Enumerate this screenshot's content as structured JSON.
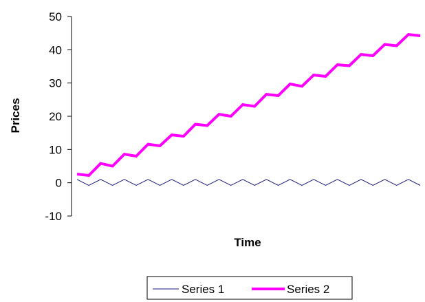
{
  "chart_data": {
    "type": "line",
    "title": "",
    "xlabel": "Time",
    "ylabel": "Prices",
    "ylim": [
      -10,
      50
    ],
    "yticks": [
      -10,
      0,
      10,
      20,
      30,
      40,
      50
    ],
    "grid": false,
    "legend_position": "bottom",
    "x": [
      1,
      2,
      3,
      4,
      5,
      6,
      7,
      8,
      9,
      10,
      11,
      12,
      13,
      14,
      15,
      16,
      17,
      18,
      19,
      20,
      21,
      22,
      23,
      24,
      25,
      26,
      27,
      28,
      29,
      30
    ],
    "series": [
      {
        "name": "Series 1",
        "color": "#1a1a80",
        "values": [
          1,
          -0.8,
          1,
          -0.8,
          1,
          -0.8,
          1,
          -0.8,
          1,
          -0.8,
          1,
          -0.8,
          1,
          -0.8,
          1,
          -0.8,
          1,
          -0.8,
          1,
          -0.8,
          1,
          -0.8,
          1,
          -0.8,
          1,
          -0.8,
          1,
          -0.8,
          1,
          -0.8
        ]
      },
      {
        "name": "Series 2",
        "color": "#ff00ff",
        "values": [
          2.6,
          2.2,
          5.8,
          5.0,
          8.6,
          8.0,
          11.6,
          11.1,
          14.4,
          14.0,
          17.6,
          17.2,
          20.6,
          20.0,
          23.5,
          23.0,
          26.6,
          26.2,
          29.7,
          29.0,
          32.4,
          32.0,
          35.5,
          35.2,
          38.6,
          38.2,
          41.6,
          41.2,
          44.6,
          44.2
        ]
      }
    ]
  }
}
